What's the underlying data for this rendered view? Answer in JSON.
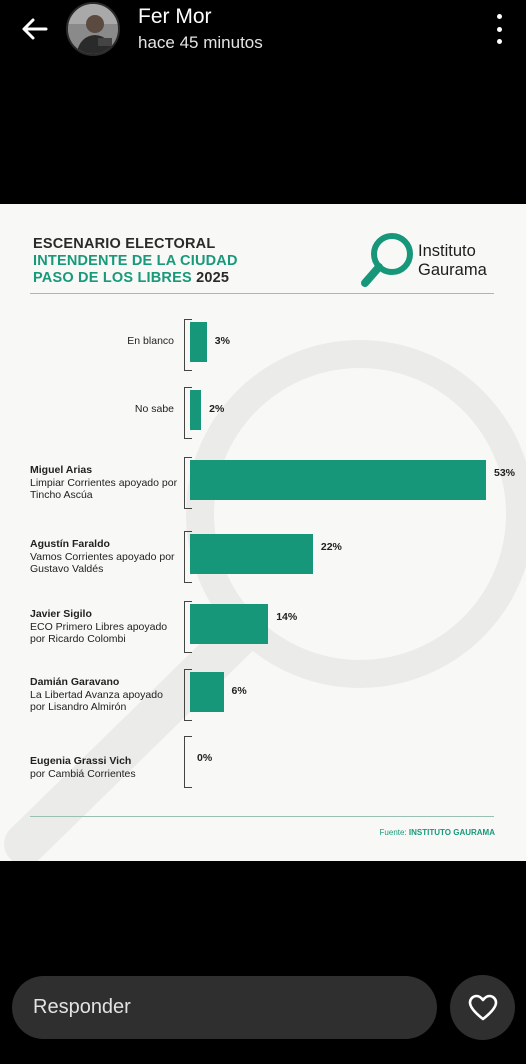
{
  "header": {
    "back_icon": "arrow-left-icon",
    "user_name": "Fer Mor",
    "time_ago": "hace 45 minutos",
    "menu_icon": "more-vertical-icon"
  },
  "infographic": {
    "title_line1": "ESCENARIO ELECTORAL",
    "title_line2": "INTENDENTE DE LA CIUDAD",
    "title_line3": "PASO DE LOS LIBRES",
    "title_year": "2025",
    "logo_line1": "Instituto",
    "logo_line2": "Gaurama",
    "source_prefix": "Fuente:",
    "source_name": "INSTITUTO GAURAMA",
    "colors": {
      "bar": "#17977a",
      "accent": "#17997a"
    }
  },
  "chart_data": {
    "type": "bar",
    "orientation": "horizontal",
    "categories": [
      {
        "name": "En blanco",
        "detail": ""
      },
      {
        "name": "No sabe",
        "detail": ""
      },
      {
        "name": "Miguel Arias",
        "detail": "Limpiar Corrientes apoyado por Tincho Ascúa"
      },
      {
        "name": "Agustín Faraldo",
        "detail": "Vamos Corrientes apoyado por Gustavo Valdés"
      },
      {
        "name": "Javier Sigilo",
        "detail": "ECO Primero Libres apoyado por Ricardo Colombi"
      },
      {
        "name": "Damián Garavano",
        "detail": "La Libertad Avanza apoyado por Lisandro Almirón"
      },
      {
        "name": "Eugenia Grassi Vich",
        "detail": "por Cambiá Corrientes"
      }
    ],
    "values": [
      3,
      2,
      53,
      22,
      14,
      6,
      0
    ],
    "value_labels": [
      "3%",
      "2%",
      "53%",
      "22%",
      "14%",
      "6%",
      "0%"
    ],
    "unit": "%",
    "xlim": [
      0,
      53
    ],
    "grid": false,
    "legend": "none"
  },
  "reply": {
    "placeholder": "Responder",
    "like_icon": "heart-icon"
  }
}
